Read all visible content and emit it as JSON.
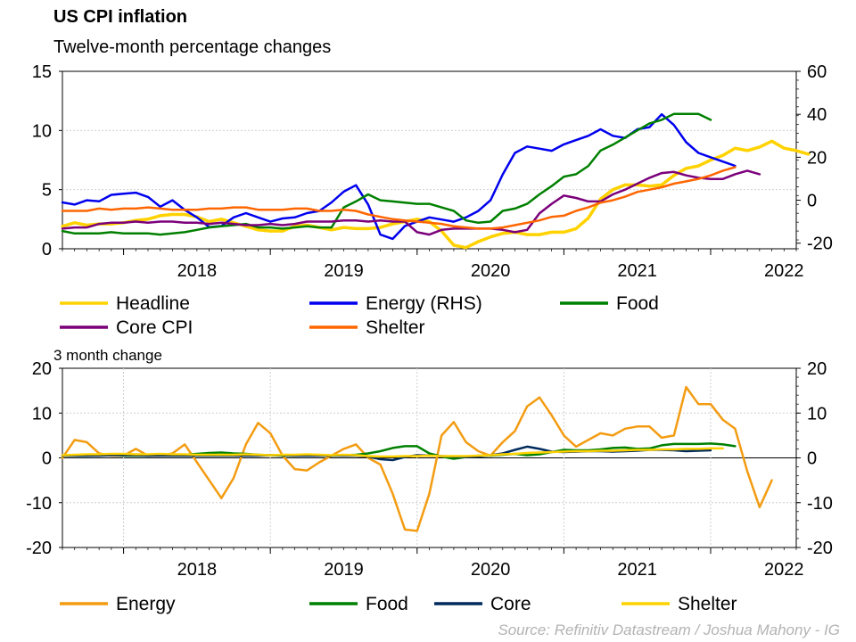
{
  "title": "US CPI inflation",
  "subtitle": "Twelve-month percentage changes",
  "source": "Source: Refinitiv Datastream / Joshua Mahony - IG",
  "chart_data": [
    {
      "type": "line",
      "x_range": [
        "2017-08",
        "2022-08"
      ],
      "x_ticks": [
        "2018",
        "2019",
        "2020",
        "2021",
        "2022"
      ],
      "y_left": {
        "ticks": [
          0,
          5,
          10,
          15
        ],
        "ylim": [
          0,
          15
        ]
      },
      "y_right": {
        "ticks": [
          -20,
          0,
          20,
          40,
          60
        ],
        "ylim": [
          -22.6,
          60
        ]
      },
      "grid": true,
      "legend_position": "bottom",
      "series": [
        {
          "name": "Headline",
          "axis": "left",
          "color": "#FFD200",
          "width": 3.5,
          "values": [
            1.9,
            2.2,
            2.0,
            2.1,
            2.1,
            2.2,
            2.4,
            2.5,
            2.8,
            2.9,
            2.9,
            2.7,
            2.3,
            2.5,
            2.2,
            1.9,
            1.6,
            1.5,
            1.5,
            1.9,
            2.0,
            1.8,
            1.6,
            1.8,
            1.7,
            1.7,
            1.8,
            2.1,
            2.3,
            2.5,
            2.3,
            1.5,
            0.3,
            0.1,
            0.6,
            1.0,
            1.3,
            1.4,
            1.2,
            1.2,
            1.4,
            1.4,
            1.7,
            2.6,
            4.2,
            5.0,
            5.4,
            5.4,
            5.3,
            5.4,
            6.2,
            6.8,
            7.0,
            7.5,
            7.9,
            8.5,
            8.3,
            8.6,
            9.1,
            8.5,
            8.3,
            8.0
          ]
        },
        {
          "name": "Energy (RHS)",
          "axis": "right",
          "color": "#0000EE",
          "width": 2.5,
          "values": [
            -1.0,
            -2.0,
            0,
            -0.5,
            2.5,
            3.0,
            3.5,
            1.5,
            -3.0,
            0,
            -4.5,
            -8.0,
            -12.5,
            -12.0,
            -8.0,
            -6.0,
            -8.0,
            -10.0,
            -8.5,
            -8.0,
            -6.0,
            -5.0,
            -1.0,
            4.0,
            7.0,
            -2.0,
            -16.0,
            -18.0,
            -12.0,
            -10.0,
            -8.0,
            -9.0,
            -10.0,
            -8.0,
            -5.0,
            0,
            12.0,
            22.0,
            25.0,
            24.0,
            23.0,
            26.0,
            28.0,
            30.0,
            33.0,
            30.0,
            29.0,
            33.0,
            34.0,
            40.0,
            35.0,
            27.0,
            22.0,
            20.0,
            18.0,
            16.0
          ]
        },
        {
          "name": "Food",
          "axis": "left",
          "color": "#008000",
          "width": 2.5,
          "values": [
            1.5,
            1.3,
            1.3,
            1.3,
            1.4,
            1.3,
            1.3,
            1.3,
            1.2,
            1.3,
            1.4,
            1.6,
            1.8,
            1.9,
            2.0,
            2.1,
            1.8,
            1.8,
            1.7,
            1.8,
            1.9,
            1.8,
            1.8,
            3.5,
            4.0,
            4.6,
            4.1,
            4.0,
            3.9,
            3.8,
            3.8,
            3.5,
            3.2,
            2.4,
            2.2,
            2.3,
            3.2,
            3.4,
            3.8,
            4.6,
            5.3,
            6.1,
            6.3,
            7.0,
            8.3,
            8.8,
            9.4,
            10.0,
            10.6,
            10.9,
            11.4,
            11.4,
            11.4,
            10.9
          ]
        },
        {
          "name": "Core CPI",
          "axis": "left",
          "color": "#7B007B",
          "width": 2.5,
          "values": [
            1.7,
            1.8,
            1.8,
            2.1,
            2.2,
            2.2,
            2.3,
            2.2,
            2.3,
            2.3,
            2.2,
            2.2,
            2.1,
            2.2,
            2.1,
            2.0,
            2.0,
            2.1,
            2.0,
            2.1,
            2.3,
            2.3,
            2.3,
            2.4,
            2.4,
            2.3,
            2.4,
            2.3,
            2.3,
            1.4,
            1.2,
            1.6,
            1.7,
            1.7,
            1.7,
            1.7,
            1.6,
            1.4,
            1.6,
            3.0,
            3.8,
            4.5,
            4.3,
            4.0,
            4.0,
            4.6,
            5.0,
            5.5,
            6.0,
            6.4,
            6.5,
            6.2,
            6.0,
            5.9,
            5.9,
            6.3,
            6.6,
            6.3
          ]
        },
        {
          "name": "Shelter",
          "axis": "left",
          "color": "#FF6600",
          "width": 2.5,
          "values": [
            3.2,
            3.2,
            3.2,
            3.4,
            3.3,
            3.4,
            3.4,
            3.5,
            3.4,
            3.3,
            3.3,
            3.3,
            3.4,
            3.4,
            3.5,
            3.5,
            3.3,
            3.3,
            3.3,
            3.4,
            3.4,
            3.2,
            3.2,
            3.3,
            3.2,
            2.9,
            2.7,
            2.5,
            2.4,
            2.3,
            2.2,
            2.1,
            1.9,
            1.8,
            1.7,
            1.7,
            1.8,
            2.0,
            2.2,
            2.4,
            2.7,
            2.8,
            3.2,
            3.5,
            3.9,
            4.1,
            4.4,
            4.8,
            5.0,
            5.2,
            5.5,
            5.7,
            5.9,
            6.2,
            6.6,
            6.9
          ]
        }
      ]
    },
    {
      "type": "line",
      "title": "3 month change",
      "x_range": [
        "2017-08",
        "2022-08"
      ],
      "x_ticks": [
        "2018",
        "2019",
        "2020",
        "2021",
        "2022"
      ],
      "y_left": {
        "ticks": [
          -20,
          -10,
          0,
          10,
          20
        ],
        "ylim": [
          -20,
          20
        ]
      },
      "y_right": {
        "ticks": [
          -20,
          -10,
          0,
          10,
          20
        ],
        "ylim": [
          -20,
          20
        ]
      },
      "grid": true,
      "legend_position": "bottom",
      "series": [
        {
          "name": "Energy",
          "color": "#F39C12",
          "width": 2.5,
          "values": [
            0,
            4.0,
            3.5,
            1.0,
            0.5,
            0.5,
            2.0,
            0.5,
            0.5,
            1.0,
            3.0,
            -1.0,
            -5.0,
            -9.0,
            -4.5,
            3.0,
            7.8,
            5.5,
            0.5,
            -2.5,
            -2.8,
            -1.0,
            0.5,
            2.0,
            3.0,
            0,
            -1.5,
            -8.0,
            -16.0,
            -16.3,
            -8.0,
            5.0,
            8.0,
            3.5,
            1.5,
            0.5,
            3.5,
            6.0,
            11.5,
            13.5,
            9.5,
            5.0,
            2.5,
            4.0,
            5.5,
            5.0,
            6.5,
            7.0,
            7.0,
            4.5,
            5.0,
            15.8,
            12.0,
            12.0,
            8.5,
            6.5,
            -3.0,
            -11.0,
            -5.0
          ]
        },
        {
          "name": "Food",
          "color": "#008000",
          "width": 2.5,
          "values": [
            0.5,
            0.5,
            0.5,
            0.6,
            0.7,
            0.5,
            0.5,
            0.5,
            0.6,
            0.7,
            0.7,
            0.9,
            1.1,
            1.2,
            1.0,
            0.9,
            0.7,
            0.6,
            0.5,
            0.5,
            0.6,
            0.6,
            0.5,
            0.6,
            0.7,
            1.0,
            1.5,
            2.2,
            2.6,
            2.6,
            1.0,
            0.3,
            -0.2,
            0.2,
            0.5,
            0.5,
            0.7,
            0.9,
            0.6,
            0.8,
            1.3,
            1.8,
            1.7,
            1.7,
            1.9,
            2.2,
            2.3,
            2.0,
            2.1,
            2.8,
            3.1,
            3.1,
            3.1,
            3.2,
            3.0,
            2.6
          ]
        },
        {
          "name": "Core",
          "color": "#002B5C",
          "width": 2.5,
          "values": [
            0.5,
            0.5,
            0.5,
            0.5,
            0.6,
            0.6,
            0.6,
            0.5,
            0.5,
            0.5,
            0.5,
            0.5,
            0.5,
            0.5,
            0.5,
            0.5,
            0.5,
            0.6,
            0.6,
            0.5,
            0.5,
            0.5,
            0.5,
            0.5,
            0.5,
            0.3,
            -0.3,
            -0.5,
            0.2,
            0.6,
            0.5,
            0.4,
            0.3,
            0.2,
            0.3,
            0.6,
            1.0,
            1.8,
            2.5,
            2.0,
            1.4,
            1.3,
            1.4,
            1.5,
            1.5,
            1.4,
            1.5,
            1.6,
            1.8,
            1.8,
            1.7,
            1.5,
            1.6,
            1.7
          ]
        },
        {
          "name": "Shelter",
          "color": "#FFD200",
          "width": 2.5,
          "values": [
            0.6,
            0.7,
            0.8,
            0.8,
            0.9,
            0.9,
            0.8,
            0.8,
            0.9,
            0.8,
            0.8,
            0.7,
            0.7,
            0.7,
            0.7,
            0.8,
            0.7,
            0.6,
            0.7,
            0.7,
            0.8,
            0.7,
            0.6,
            0.7,
            0.6,
            0.4,
            0.3,
            0.3,
            0.4,
            0.4,
            0.5,
            0.4,
            0.4,
            0.4,
            0.5,
            0.6,
            0.8,
            0.9,
            1.1,
            1.2,
            1.3,
            1.4,
            1.5,
            1.5,
            1.6,
            1.6,
            1.7,
            1.8,
            1.8,
            1.9,
            1.9,
            2.0,
            2.0,
            2.1,
            2.1
          ]
        }
      ]
    }
  ]
}
